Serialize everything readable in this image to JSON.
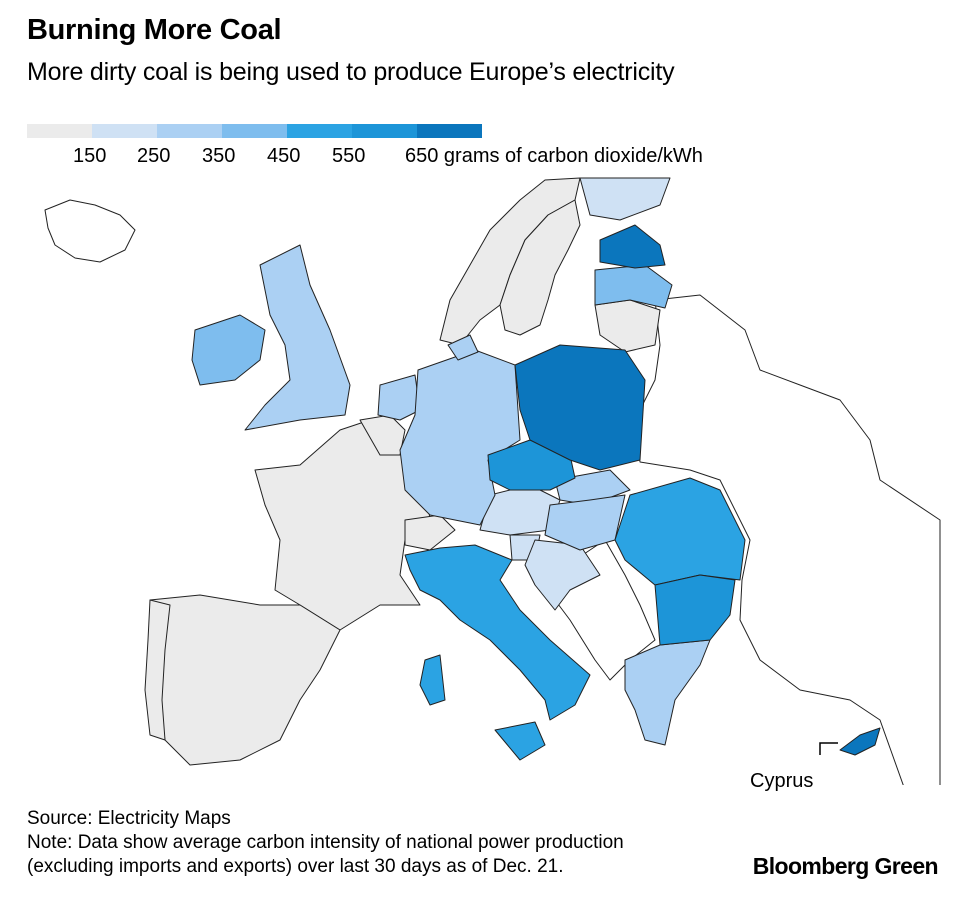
{
  "header": {
    "title": "Burning More Coal",
    "subtitle": "More dirty coal is being used to produce Europe’s electricity"
  },
  "legend": {
    "colors": [
      "#ebebeb",
      "#cfe1f4",
      "#abd0f3",
      "#7ebdee",
      "#2ba3e3",
      "#1d95d8",
      "#0b76bd"
    ],
    "labels": [
      "150",
      "250",
      "350",
      "450",
      "550",
      "650 grams of carbon dioxide/kWh"
    ]
  },
  "map": {
    "regions": [
      {
        "name": "France",
        "bin": 0
      },
      {
        "name": "Spain",
        "bin": 0
      },
      {
        "name": "Portugal",
        "bin": 0
      },
      {
        "name": "Switzerland",
        "bin": 0
      },
      {
        "name": "Norway",
        "bin": 0
      },
      {
        "name": "Sweden",
        "bin": 0
      },
      {
        "name": "Lithuania",
        "bin": 0
      },
      {
        "name": "Belgium",
        "bin": 0
      },
      {
        "name": "Finland",
        "bin": 1
      },
      {
        "name": "Austria",
        "bin": 1
      },
      {
        "name": "Croatia",
        "bin": 1
      },
      {
        "name": "Slovenia",
        "bin": 1
      },
      {
        "name": "United Kingdom",
        "bin": 2
      },
      {
        "name": "Netherlands",
        "bin": 2
      },
      {
        "name": "Germany",
        "bin": 2
      },
      {
        "name": "Hungary",
        "bin": 2
      },
      {
        "name": "Slovakia",
        "bin": 2
      },
      {
        "name": "Greece",
        "bin": 2
      },
      {
        "name": "Denmark",
        "bin": 2
      },
      {
        "name": "Ireland",
        "bin": 3
      },
      {
        "name": "Latvia",
        "bin": 3
      },
      {
        "name": "Italy",
        "bin": 4
      },
      {
        "name": "Romania",
        "bin": 4
      },
      {
        "name": "Czechia",
        "bin": 5
      },
      {
        "name": "Bulgaria",
        "bin": 5
      },
      {
        "name": "Poland",
        "bin": 6
      },
      {
        "name": "Estonia",
        "bin": 6
      },
      {
        "name": "Cyprus",
        "bin": 6
      }
    ],
    "cyprus_label": "Cyprus"
  },
  "footer": {
    "source": "Source: Electricity Maps",
    "note_line1": "Note: Data show average carbon intensity of national power production",
    "note_line2": "(excluding imports and exports) over last 30 days as of Dec. 21.",
    "brand": "Bloomberg Green"
  }
}
